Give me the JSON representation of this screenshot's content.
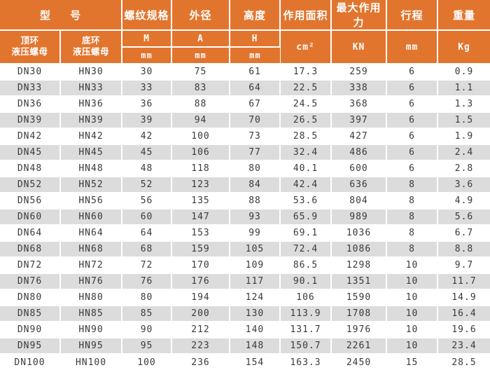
{
  "colors": {
    "header_bg": "#E2752E",
    "stripe_bg": "#DCDCDC",
    "header_text": "#FFFFFF",
    "body_text": "#3A3A3A",
    "divider": "#FFFFFF"
  },
  "table": {
    "header": {
      "model": "型 号",
      "top_ring": "顶环\n液压螺母",
      "bottom_ring": "底环\n液压螺母",
      "thread_spec": "螺纹规格",
      "thread_symbol": "M",
      "thread_unit": "mm",
      "outer_diameter": "外径",
      "diameter_symbol": "A",
      "diameter_unit": "mm",
      "height": "高度",
      "height_symbol": "H",
      "height_unit": "mm",
      "area": "作用面积",
      "area_unit": "cm²",
      "max_force": "最大作用力",
      "force_unit": "KN",
      "stroke": "行程",
      "stroke_unit": "mm",
      "weight": "重量",
      "weight_unit": "Kg"
    },
    "rows": [
      [
        "DN30",
        "HN30",
        "30",
        "75",
        "61",
        "17.3",
        "259",
        "6",
        "0.9"
      ],
      [
        "DN33",
        "HN33",
        "33",
        "83",
        "64",
        "22.5",
        "338",
        "6",
        "1.1"
      ],
      [
        "DN36",
        "HN36",
        "36",
        "88",
        "67",
        "24.5",
        "368",
        "6",
        "1.3"
      ],
      [
        "DN39",
        "HN39",
        "39",
        "94",
        "70",
        "26.5",
        "397",
        "6",
        "1.5"
      ],
      [
        "DN42",
        "HN42",
        "42",
        "100",
        "73",
        "28.5",
        "427",
        "6",
        "1.9"
      ],
      [
        "DN45",
        "HN45",
        "45",
        "106",
        "77",
        "32.4",
        "486",
        "6",
        "2.4"
      ],
      [
        "DN48",
        "HN48",
        "48",
        "118",
        "80",
        "40.1",
        "600",
        "6",
        "2.8"
      ],
      [
        "DN52",
        "HN52",
        "52",
        "123",
        "84",
        "42.4",
        "636",
        "8",
        "3.6"
      ],
      [
        "DN56",
        "HN56",
        "56",
        "135",
        "88",
        "53.6",
        "804",
        "8",
        "4.9"
      ],
      [
        "DN60",
        "HN60",
        "60",
        "147",
        "93",
        "65.9",
        "989",
        "8",
        "5.6"
      ],
      [
        "DN64",
        "HN64",
        "64",
        "153",
        "99",
        "69.1",
        "1036",
        "8",
        "6.7"
      ],
      [
        "DN68",
        "HN68",
        "68",
        "159",
        "105",
        "72.4",
        "1086",
        "8",
        "8.8"
      ],
      [
        "DN72",
        "HN72",
        "72",
        "170",
        "109",
        "86.5",
        "1298",
        "10",
        "9.7"
      ],
      [
        "DN76",
        "HN76",
        "76",
        "176",
        "117",
        "90.1",
        "1351",
        "10",
        "11.7"
      ],
      [
        "DN80",
        "HN80",
        "80",
        "194",
        "124",
        "106",
        "1590",
        "10",
        "14.9"
      ],
      [
        "DN85",
        "HN85",
        "85",
        "200",
        "130",
        "113.9",
        "1708",
        "10",
        "16.4"
      ],
      [
        "DN90",
        "HN90",
        "90",
        "212",
        "140",
        "131.7",
        "1976",
        "10",
        "19.6"
      ],
      [
        "DN95",
        "HN95",
        "95",
        "223",
        "148",
        "150.7",
        "2261",
        "10",
        "23.4"
      ],
      [
        "DN100",
        "HN100",
        "100",
        "236",
        "154",
        "163.3",
        "2450",
        "15",
        "28.5"
      ]
    ]
  }
}
